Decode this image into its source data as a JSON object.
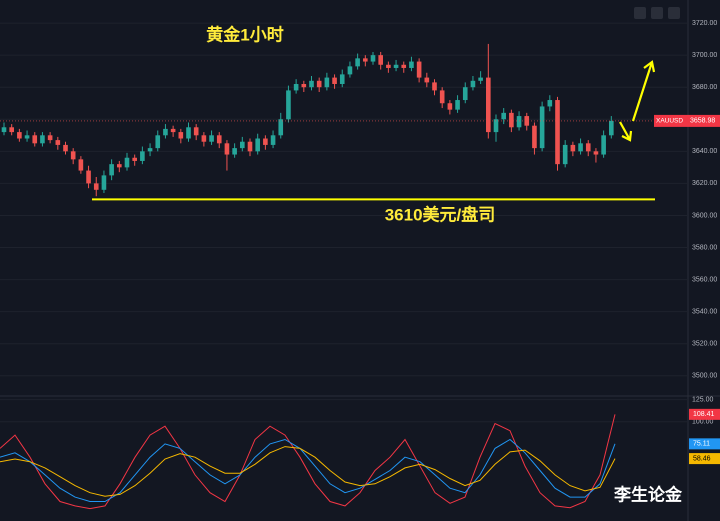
{
  "chart_data": {
    "type": "candlestick",
    "title": "黄金1小时",
    "annotation": "3610美元/盘司",
    "watermark": "李生论金",
    "symbol": "XAUUSD",
    "support_level": 3610,
    "up_color": "#26a69a",
    "down_color": "#ef5350",
    "ylim": [
      3488,
      3734.4
    ],
    "yticks": [
      {
        "value": 3720,
        "label": "3720.00"
      },
      {
        "value": 3700,
        "label": "3700.00"
      },
      {
        "value": 3680,
        "label": "3680.00"
      },
      {
        "value": 3660,
        "label": "3660.00"
      },
      {
        "value": 3640,
        "label": "3640.00"
      },
      {
        "value": 3620,
        "label": "3620.00"
      },
      {
        "value": 3600,
        "label": "3600.00"
      },
      {
        "value": 3580,
        "label": "3580.00"
      },
      {
        "value": 3560,
        "label": "3560.00"
      },
      {
        "value": 3540,
        "label": "3540.00"
      },
      {
        "value": 3520,
        "label": "3520.00"
      },
      {
        "value": 3500,
        "label": "3500.00"
      }
    ],
    "candles": [
      [
        3652,
        3658,
        3650,
        3655
      ],
      [
        3655,
        3657,
        3650,
        3652
      ],
      [
        3652,
        3654,
        3646,
        3648
      ],
      [
        3648,
        3653,
        3646,
        3650
      ],
      [
        3650,
        3652,
        3643,
        3645
      ],
      [
        3645,
        3652,
        3643,
        3650
      ],
      [
        3650,
        3652,
        3645,
        3647
      ],
      [
        3647,
        3649,
        3641,
        3644
      ],
      [
        3644,
        3646,
        3638,
        3640
      ],
      [
        3640,
        3642,
        3632,
        3635
      ],
      [
        3635,
        3637,
        3626,
        3628
      ],
      [
        3628,
        3631,
        3617,
        3620
      ],
      [
        3620,
        3624,
        3612,
        3616
      ],
      [
        3616,
        3628,
        3614,
        3625
      ],
      [
        3625,
        3635,
        3622,
        3632
      ],
      [
        3632,
        3634,
        3627,
        3630
      ],
      [
        3630,
        3639,
        3628,
        3636
      ],
      [
        3636,
        3638,
        3631,
        3634
      ],
      [
        3634,
        3643,
        3632,
        3640
      ],
      [
        3640,
        3645,
        3637,
        3642
      ],
      [
        3642,
        3653,
        3640,
        3650
      ],
      [
        3650,
        3657,
        3648,
        3654
      ],
      [
        3654,
        3656,
        3649,
        3652
      ],
      [
        3652,
        3654,
        3645,
        3648
      ],
      [
        3648,
        3658,
        3646,
        3655
      ],
      [
        3655,
        3657,
        3647,
        3650
      ],
      [
        3650,
        3652,
        3643,
        3646
      ],
      [
        3646,
        3653,
        3644,
        3650
      ],
      [
        3650,
        3652,
        3642,
        3645
      ],
      [
        3645,
        3647,
        3628,
        3638
      ],
      [
        3638,
        3645,
        3636,
        3642
      ],
      [
        3642,
        3649,
        3640,
        3646
      ],
      [
        3646,
        3648,
        3637,
        3640
      ],
      [
        3640,
        3651,
        3638,
        3648
      ],
      [
        3648,
        3650,
        3641,
        3644
      ],
      [
        3644,
        3653,
        3642,
        3650
      ],
      [
        3650,
        3664,
        3648,
        3660
      ],
      [
        3660,
        3681,
        3658,
        3678
      ],
      [
        3678,
        3685,
        3676,
        3682
      ],
      [
        3682,
        3684,
        3677,
        3680
      ],
      [
        3680,
        3687,
        3678,
        3684
      ],
      [
        3684,
        3686,
        3677,
        3680
      ],
      [
        3680,
        3689,
        3678,
        3686
      ],
      [
        3686,
        3688,
        3679,
        3682
      ],
      [
        3682,
        3691,
        3680,
        3688
      ],
      [
        3688,
        3696,
        3686,
        3693
      ],
      [
        3693,
        3701,
        3691,
        3698
      ],
      [
        3698,
        3700,
        3693,
        3696
      ],
      [
        3696,
        3702,
        3694,
        3700
      ],
      [
        3700,
        3702,
        3691,
        3694
      ],
      [
        3694,
        3696,
        3689,
        3692
      ],
      [
        3692,
        3697,
        3690,
        3694
      ],
      [
        3694,
        3696,
        3689,
        3692
      ],
      [
        3692,
        3699,
        3690,
        3696
      ],
      [
        3696,
        3698,
        3683,
        3686
      ],
      [
        3686,
        3689,
        3680,
        3683
      ],
      [
        3683,
        3685,
        3675,
        3678
      ],
      [
        3678,
        3680,
        3667,
        3670
      ],
      [
        3670,
        3672,
        3663,
        3666
      ],
      [
        3666,
        3675,
        3664,
        3672
      ],
      [
        3672,
        3683,
        3670,
        3680
      ],
      [
        3680,
        3687,
        3678,
        3684
      ],
      [
        3684,
        3690,
        3682,
        3686
      ],
      [
        3686,
        3707,
        3648,
        3652
      ],
      [
        3652,
        3663,
        3646,
        3660
      ],
      [
        3660,
        3667,
        3657,
        3664
      ],
      [
        3664,
        3666,
        3652,
        3655
      ],
      [
        3655,
        3665,
        3653,
        3662
      ],
      [
        3662,
        3664,
        3653,
        3656
      ],
      [
        3656,
        3658,
        3638,
        3642
      ],
      [
        3642,
        3671,
        3640,
        3668
      ],
      [
        3668,
        3675,
        3665,
        3672
      ],
      [
        3672,
        3674,
        3628,
        3632
      ],
      [
        3632,
        3647,
        3630,
        3644
      ],
      [
        3644,
        3646,
        3637,
        3640
      ],
      [
        3640,
        3648,
        3638,
        3645
      ],
      [
        3645,
        3647,
        3637,
        3640
      ],
      [
        3640,
        3642,
        3633,
        3638
      ],
      [
        3638,
        3653,
        3636,
        3650
      ],
      [
        3650,
        3662,
        3648,
        3658.98
      ]
    ],
    "indicator": {
      "ylim": [
        -12,
        128
      ],
      "yticks": [
        {
          "value": 125,
          "label": "125.00"
        },
        {
          "value": 100,
          "label": "100.00"
        }
      ],
      "series": [
        {
          "color": "#f23645",
          "values": [
            70,
            85,
            60,
            30,
            10,
            5,
            2,
            5,
            30,
            60,
            85,
            95,
            70,
            40,
            20,
            10,
            40,
            80,
            95,
            85,
            60,
            30,
            10,
            5,
            20,
            45,
            60,
            80,
            50,
            20,
            8,
            15,
            60,
            98,
            90,
            50,
            20,
            5,
            3,
            10,
            40,
            108.41
          ]
        },
        {
          "color": "#2196f3",
          "values": [
            60,
            65,
            55,
            40,
            25,
            15,
            10,
            10,
            20,
            40,
            60,
            75,
            70,
            55,
            40,
            30,
            40,
            60,
            75,
            80,
            70,
            50,
            30,
            20,
            25,
            35,
            45,
            60,
            55,
            40,
            25,
            20,
            40,
            70,
            80,
            65,
            45,
            25,
            15,
            15,
            30,
            75.11
          ]
        },
        {
          "color": "#f5b800",
          "values": [
            55,
            58,
            55,
            48,
            38,
            28,
            20,
            16,
            18,
            28,
            42,
            58,
            64,
            60,
            50,
            42,
            42,
            52,
            65,
            72,
            70,
            60,
            45,
            32,
            28,
            30,
            38,
            48,
            52,
            46,
            36,
            28,
            34,
            52,
            66,
            68,
            56,
            40,
            28,
            22,
            26,
            58.46
          ]
        }
      ]
    }
  }
}
